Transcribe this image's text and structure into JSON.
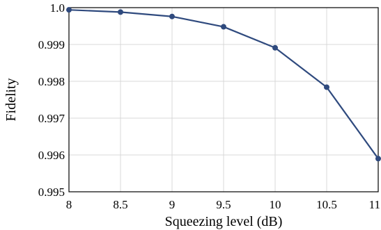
{
  "chart_data": {
    "type": "line",
    "title": "",
    "xlabel": "Squeezing level (dB)",
    "ylabel": "Fidelity",
    "x": [
      8,
      8.5,
      9,
      9.5,
      10,
      10.5,
      11
    ],
    "series": [
      {
        "values": [
          0.99994,
          0.99988,
          0.99976,
          0.99948,
          0.99891,
          0.99784,
          0.9959
        ]
      }
    ],
    "xlim": [
      8,
      11
    ],
    "ylim": [
      0.995,
      1.0
    ],
    "xticks": [
      8,
      8.5,
      9,
      9.5,
      10,
      10.5,
      11
    ],
    "xtick_labels": [
      "8",
      "8.5",
      "9",
      "9.5",
      "10",
      "10.5",
      "11"
    ],
    "yticks": [
      0.995,
      0.996,
      0.997,
      0.998,
      0.999,
      1.0
    ],
    "ytick_labels": [
      "0.995",
      "0.996",
      "0.997",
      "0.998",
      "0.999",
      "1.0"
    ],
    "grid": true,
    "colors": {
      "line": "#2f4a7e",
      "marker": "#2f4a7e",
      "grid": "#d9d9d9",
      "frame": "#000000"
    }
  }
}
